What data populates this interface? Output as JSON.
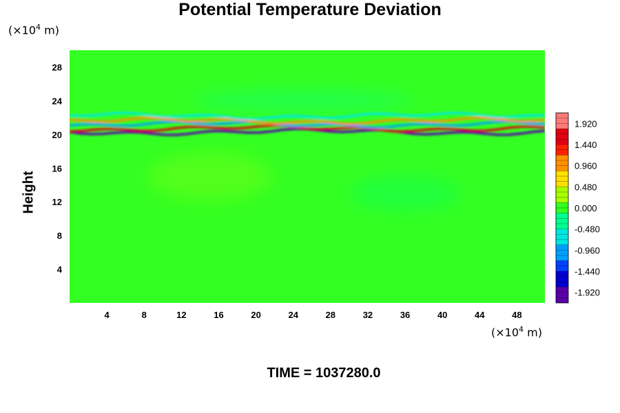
{
  "chart_data": {
    "type": "heatmap",
    "title": "Potential Temperature Deviation",
    "ylabel": "Height",
    "x_unit_prefix": "(×10",
    "x_unit_exp": "4",
    "x_unit_suffix": " m)",
    "y_unit_prefix": "(×10",
    "y_unit_exp": "4",
    "y_unit_suffix": " m)",
    "x_ticks": [
      4,
      8,
      12,
      16,
      20,
      24,
      28,
      32,
      36,
      40,
      44,
      48
    ],
    "y_ticks": [
      4,
      8,
      12,
      16,
      20,
      24,
      28
    ],
    "xlim": [
      0,
      51
    ],
    "ylim": [
      0,
      30
    ],
    "colorbar": {
      "range": [
        -2.16,
        2.16
      ],
      "tick_values": [
        1.92,
        1.44,
        0.96,
        0.48,
        0.0,
        -0.48,
        -0.96,
        -1.44,
        -1.92
      ],
      "tick_labels": [
        "1.920",
        "1.440",
        "0.960",
        "0.480",
        "0.000",
        "-0.480",
        "-0.960",
        "-1.440",
        "-1.920"
      ]
    },
    "background_value": 0.1,
    "features": [
      {
        "y": 20.3,
        "value": -1.9,
        "x_range": [
          0,
          51
        ]
      },
      {
        "y": 20.7,
        "value": 1.5,
        "x_range": [
          0,
          51
        ]
      },
      {
        "y": 21.2,
        "value": -0.9,
        "x_range": [
          0,
          51
        ]
      },
      {
        "y": 21.6,
        "value": 0.9,
        "x_range": [
          0,
          51
        ]
      },
      {
        "y": 22.2,
        "value": -0.5,
        "x_range": [
          0,
          51
        ]
      }
    ],
    "time_label": "TIME = 1037280.0"
  },
  "colors": {
    "background_field": "#33ff22",
    "palette": [
      "#5a00a8",
      "#0000d0",
      "#0040ff",
      "#00a0ff",
      "#00e8e0",
      "#00ff90",
      "#33ff22",
      "#a8ff00",
      "#ffe000",
      "#ff9000",
      "#ff2000",
      "#e00010",
      "#ff7a7a"
    ]
  }
}
